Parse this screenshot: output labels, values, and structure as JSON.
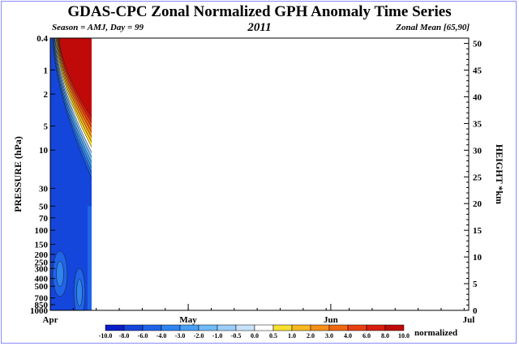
{
  "title": "GDAS-CPC Zonal Normalized GPH Anomaly Time Series",
  "subtitle_left": "Season = AMJ, Day =  99",
  "subtitle_center": "2011",
  "subtitle_right": "Zonal Mean [65,90]",
  "colorbar_unit": "normalized",
  "colors": {
    "frame": "#8a8aff",
    "neg": [
      "#0a1ec8",
      "#1446dc",
      "#2064e8",
      "#2e84f0",
      "#48a0f4",
      "#70baf8",
      "#9ccefa"
    ],
    "neutral": "#ffffff",
    "pos": [
      "#f8e030",
      "#f8b820",
      "#f49018",
      "#f06810",
      "#e84010",
      "#d81e10",
      "#c00a0a"
    ]
  },
  "chart_data": {
    "type": "heatmap",
    "title": "GDAS-CPC Zonal Normalized GPH Anomaly Time Series",
    "xlabel": "",
    "ylabel": "PRESSURE (hPa)",
    "ylabel_right": "HEIGHT *km",
    "x_ticks": [
      "Apr",
      "May",
      "Jun",
      "Jul"
    ],
    "pressure_ticks": [
      "0.4",
      "1",
      "2",
      "5",
      "10",
      "30",
      "50",
      "70",
      "100",
      "150",
      "200",
      "250",
      "300",
      "400",
      "500",
      "700",
      "850",
      "1000"
    ],
    "height_ticks": [
      "0",
      "5",
      "10",
      "15",
      "20",
      "25",
      "30",
      "35",
      "40",
      "45",
      "50"
    ],
    "ylim_height_km": [
      0,
      51
    ],
    "days_with_data": 9,
    "days_total": 91,
    "colorbar_levels": [
      "-10.0",
      "-8.0",
      "-6.0",
      "-4.0",
      "-3.0",
      "-2.0",
      "-1.0",
      "-0.5",
      "0.0",
      "0.5",
      "1.0",
      "2.0",
      "3.0",
      "4.0",
      "6.0",
      "8.0",
      "10.0"
    ],
    "grid": false
  }
}
